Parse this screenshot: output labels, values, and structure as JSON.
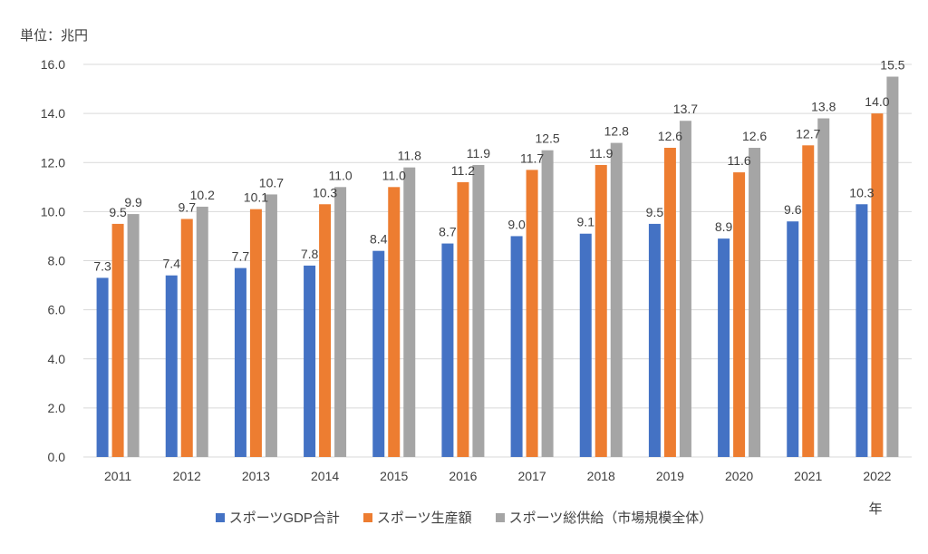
{
  "chart_data": {
    "type": "bar",
    "unit_label": "単位：兆円",
    "xlabel": "年",
    "ylim": [
      0,
      16
    ],
    "yticks": [
      "0.0",
      "2.0",
      "4.0",
      "6.0",
      "8.0",
      "10.0",
      "12.0",
      "14.0",
      "16.0"
    ],
    "grid": true,
    "legend_position": "bottom",
    "categories": [
      "2011",
      "2012",
      "2013",
      "2014",
      "2015",
      "2016",
      "2017",
      "2018",
      "2019",
      "2020",
      "2021",
      "2022"
    ],
    "series": [
      {
        "name": "スポーツGDP合計",
        "color": "#4472C4",
        "values": [
          7.3,
          7.4,
          7.7,
          7.8,
          8.4,
          8.7,
          9.0,
          9.1,
          9.5,
          8.9,
          9.6,
          10.3
        ],
        "labels": [
          "7.3",
          "7.4",
          "7.7",
          "7.8",
          "8.4",
          "8.7",
          "9.0",
          "9.1",
          "9.5",
          "8.9",
          "9.6",
          "10.3"
        ]
      },
      {
        "name": "スポーツ生産額",
        "color": "#ED7D31",
        "values": [
          9.5,
          9.7,
          10.1,
          10.3,
          11.0,
          11.2,
          11.7,
          11.9,
          12.6,
          11.6,
          12.7,
          14.0
        ],
        "labels": [
          "9.5",
          "9.7",
          "10.1",
          "10.3",
          "11.0",
          "11.2",
          "11.7",
          "11.9",
          "12.6",
          "11.6",
          "12.7",
          "14.0"
        ]
      },
      {
        "name": "スポーツ総供給（市場規模全体）",
        "color": "#A5A5A5",
        "values": [
          9.9,
          10.2,
          10.7,
          11.0,
          11.8,
          11.9,
          12.5,
          12.8,
          13.7,
          12.6,
          13.8,
          15.5
        ],
        "labels": [
          "9.9",
          "10.2",
          "10.7",
          "11.0",
          "11.8",
          "11.9",
          "12.5",
          "12.8",
          "13.7",
          "12.6",
          "13.8",
          "15.5"
        ]
      }
    ]
  }
}
